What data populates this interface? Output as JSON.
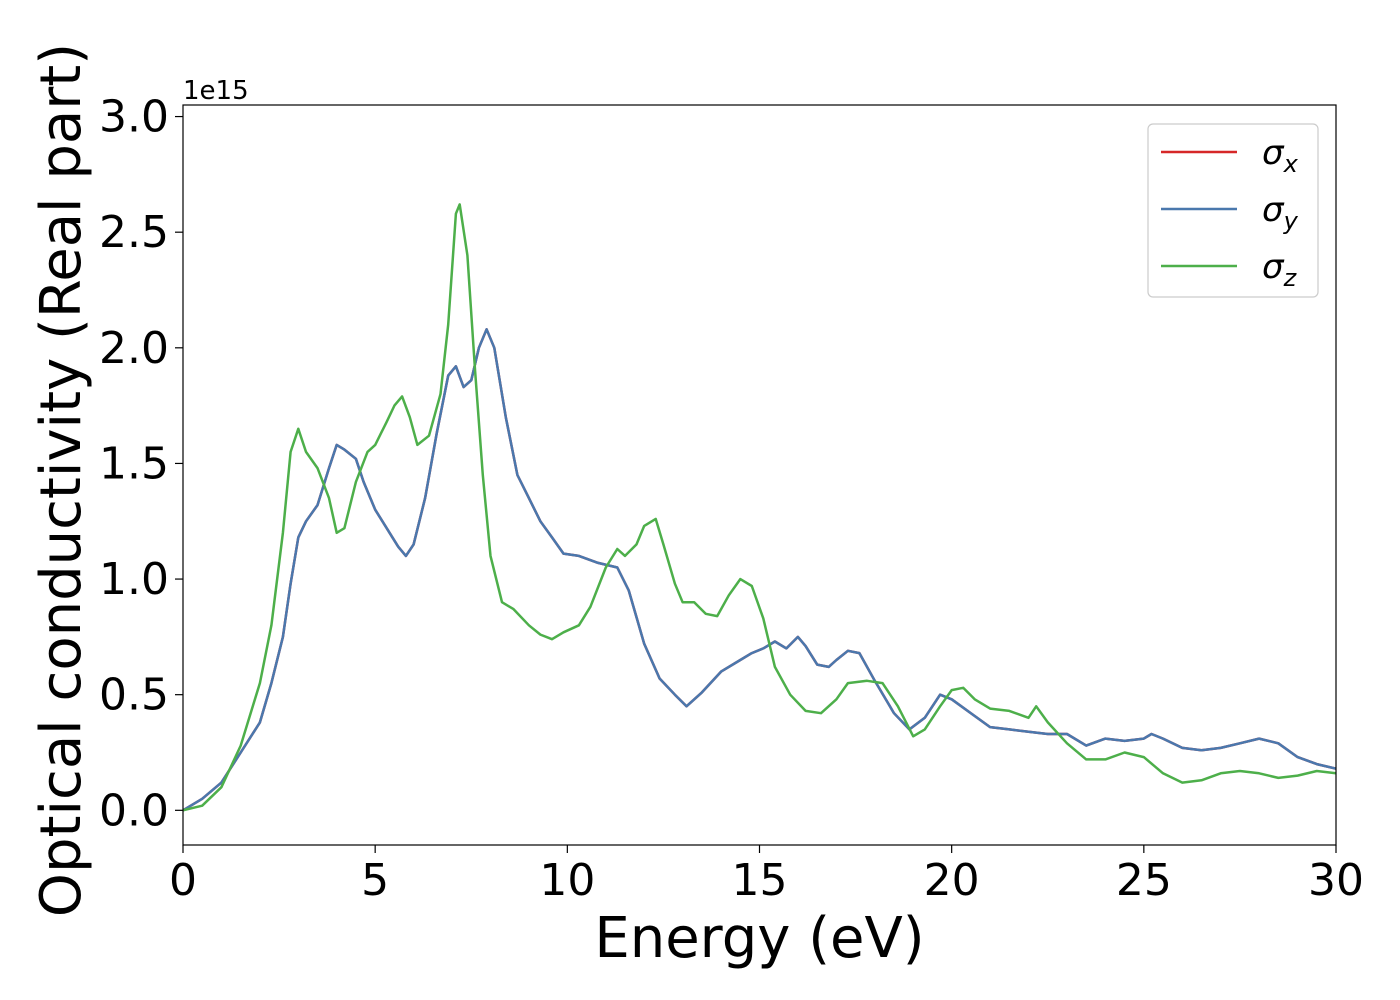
{
  "chart_data": {
    "type": "line",
    "xlabel": "Energy (eV)",
    "ylabel": "Optical conductivity (Real part)",
    "y_offset_label": "1e15",
    "xlim": [
      0,
      30
    ],
    "ylim": [
      -0.15,
      3.05
    ],
    "xticks": [
      0,
      5,
      10,
      15,
      20,
      25,
      30
    ],
    "yticks": [
      0.0,
      0.5,
      1.0,
      1.5,
      2.0,
      2.5,
      3.0
    ],
    "xtick_labels": [
      "0",
      "5",
      "10",
      "15",
      "20",
      "25",
      "30"
    ],
    "ytick_labels": [
      "0.0",
      "0.5",
      "1.0",
      "1.5",
      "2.0",
      "2.5",
      "3.0"
    ],
    "legend_position": "top-right",
    "series": [
      {
        "name": "σx",
        "base": "σ",
        "sub": "x",
        "color": "#d62728",
        "x": [
          0,
          0.5,
          1,
          1.5,
          2,
          2.3,
          2.6,
          2.8,
          3.0,
          3.2,
          3.5,
          3.8,
          4.0,
          4.2,
          4.5,
          4.7,
          5.0,
          5.3,
          5.6,
          5.8,
          6.0,
          6.3,
          6.6,
          6.9,
          7.1,
          7.3,
          7.5,
          7.7,
          7.9,
          8.1,
          8.4,
          8.7,
          9.0,
          9.3,
          9.6,
          9.9,
          10.3,
          10.8,
          11.3,
          11.6,
          12.0,
          12.4,
          12.8,
          13.1,
          13.5,
          14.0,
          14.5,
          14.8,
          15.1,
          15.4,
          15.7,
          16.0,
          16.2,
          16.5,
          16.8,
          17.0,
          17.3,
          17.6,
          18.0,
          18.5,
          18.9,
          19.3,
          19.7,
          20.0,
          20.5,
          21.0,
          21.5,
          22.0,
          22.5,
          23.0,
          23.5,
          24.0,
          24.5,
          25.0,
          25.2,
          25.5,
          26.0,
          26.5,
          27.0,
          27.5,
          28.0,
          28.5,
          29.0,
          29.5,
          30.0
        ],
        "y": [
          0,
          0.05,
          0.12,
          0.25,
          0.38,
          0.55,
          0.75,
          0.98,
          1.18,
          1.25,
          1.32,
          1.48,
          1.58,
          1.56,
          1.52,
          1.42,
          1.3,
          1.22,
          1.14,
          1.1,
          1.15,
          1.35,
          1.63,
          1.88,
          1.92,
          1.83,
          1.86,
          2.0,
          2.08,
          2.0,
          1.7,
          1.45,
          1.35,
          1.25,
          1.18,
          1.11,
          1.1,
          1.07,
          1.05,
          0.95,
          0.72,
          0.57,
          0.5,
          0.45,
          0.51,
          0.6,
          0.65,
          0.68,
          0.7,
          0.73,
          0.7,
          0.75,
          0.71,
          0.63,
          0.62,
          0.65,
          0.69,
          0.68,
          0.56,
          0.42,
          0.35,
          0.4,
          0.5,
          0.48,
          0.42,
          0.36,
          0.35,
          0.34,
          0.33,
          0.33,
          0.28,
          0.31,
          0.3,
          0.31,
          0.33,
          0.31,
          0.27,
          0.26,
          0.27,
          0.29,
          0.31,
          0.29,
          0.23,
          0.2,
          0.18
        ]
      },
      {
        "name": "σy",
        "base": "σ",
        "sub": "y",
        "color": "#4a78ad",
        "x": [
          0,
          0.5,
          1,
          1.5,
          2,
          2.3,
          2.6,
          2.8,
          3.0,
          3.2,
          3.5,
          3.8,
          4.0,
          4.2,
          4.5,
          4.7,
          5.0,
          5.3,
          5.6,
          5.8,
          6.0,
          6.3,
          6.6,
          6.9,
          7.1,
          7.3,
          7.5,
          7.7,
          7.9,
          8.1,
          8.4,
          8.7,
          9.0,
          9.3,
          9.6,
          9.9,
          10.3,
          10.8,
          11.3,
          11.6,
          12.0,
          12.4,
          12.8,
          13.1,
          13.5,
          14.0,
          14.5,
          14.8,
          15.1,
          15.4,
          15.7,
          16.0,
          16.2,
          16.5,
          16.8,
          17.0,
          17.3,
          17.6,
          18.0,
          18.5,
          18.9,
          19.3,
          19.7,
          20.0,
          20.5,
          21.0,
          21.5,
          22.0,
          22.5,
          23.0,
          23.5,
          24.0,
          24.5,
          25.0,
          25.2,
          25.5,
          26.0,
          26.5,
          27.0,
          27.5,
          28.0,
          28.5,
          29.0,
          29.5,
          30.0
        ],
        "y": [
          0,
          0.05,
          0.12,
          0.25,
          0.38,
          0.55,
          0.75,
          0.98,
          1.18,
          1.25,
          1.32,
          1.48,
          1.58,
          1.56,
          1.52,
          1.42,
          1.3,
          1.22,
          1.14,
          1.1,
          1.15,
          1.35,
          1.63,
          1.88,
          1.92,
          1.83,
          1.86,
          2.0,
          2.08,
          2.0,
          1.7,
          1.45,
          1.35,
          1.25,
          1.18,
          1.11,
          1.1,
          1.07,
          1.05,
          0.95,
          0.72,
          0.57,
          0.5,
          0.45,
          0.51,
          0.6,
          0.65,
          0.68,
          0.7,
          0.73,
          0.7,
          0.75,
          0.71,
          0.63,
          0.62,
          0.65,
          0.69,
          0.68,
          0.56,
          0.42,
          0.35,
          0.4,
          0.5,
          0.48,
          0.42,
          0.36,
          0.35,
          0.34,
          0.33,
          0.33,
          0.28,
          0.31,
          0.3,
          0.31,
          0.33,
          0.31,
          0.27,
          0.26,
          0.27,
          0.29,
          0.31,
          0.29,
          0.23,
          0.2,
          0.18
        ]
      },
      {
        "name": "σz",
        "base": "σ",
        "sub": "z",
        "color": "#4daf4a",
        "x": [
          0,
          0.5,
          1,
          1.5,
          2,
          2.3,
          2.6,
          2.8,
          3.0,
          3.2,
          3.5,
          3.8,
          4.0,
          4.2,
          4.5,
          4.8,
          5.0,
          5.3,
          5.5,
          5.7,
          5.9,
          6.1,
          6.4,
          6.7,
          6.9,
          7.1,
          7.2,
          7.4,
          7.6,
          7.8,
          8.0,
          8.3,
          8.6,
          9.0,
          9.3,
          9.6,
          9.9,
          10.3,
          10.6,
          11.0,
          11.3,
          11.5,
          11.8,
          12.0,
          12.3,
          12.5,
          12.8,
          13.0,
          13.3,
          13.6,
          13.9,
          14.2,
          14.5,
          14.8,
          15.1,
          15.4,
          15.8,
          16.2,
          16.6,
          17.0,
          17.3,
          17.8,
          18.2,
          18.6,
          19.0,
          19.3,
          19.7,
          20.0,
          20.3,
          20.6,
          21.0,
          21.5,
          22.0,
          22.2,
          22.5,
          23.0,
          23.5,
          24.0,
          24.5,
          25.0,
          25.5,
          26.0,
          26.5,
          27.0,
          27.5,
          28.0,
          28.5,
          29.0,
          29.5,
          30.0
        ],
        "y": [
          0,
          0.02,
          0.1,
          0.28,
          0.55,
          0.8,
          1.2,
          1.55,
          1.65,
          1.55,
          1.48,
          1.35,
          1.2,
          1.22,
          1.42,
          1.55,
          1.58,
          1.68,
          1.75,
          1.79,
          1.7,
          1.58,
          1.62,
          1.8,
          2.1,
          2.58,
          2.62,
          2.4,
          1.9,
          1.45,
          1.1,
          0.9,
          0.87,
          0.8,
          0.76,
          0.74,
          0.77,
          0.8,
          0.88,
          1.05,
          1.13,
          1.1,
          1.15,
          1.23,
          1.26,
          1.15,
          0.98,
          0.9,
          0.9,
          0.85,
          0.84,
          0.93,
          1.0,
          0.97,
          0.83,
          0.62,
          0.5,
          0.43,
          0.42,
          0.48,
          0.55,
          0.56,
          0.55,
          0.45,
          0.32,
          0.35,
          0.45,
          0.52,
          0.53,
          0.48,
          0.44,
          0.43,
          0.4,
          0.45,
          0.38,
          0.29,
          0.22,
          0.22,
          0.25,
          0.23,
          0.16,
          0.12,
          0.13,
          0.16,
          0.17,
          0.16,
          0.14,
          0.15,
          0.17,
          0.16
        ]
      }
    ]
  }
}
